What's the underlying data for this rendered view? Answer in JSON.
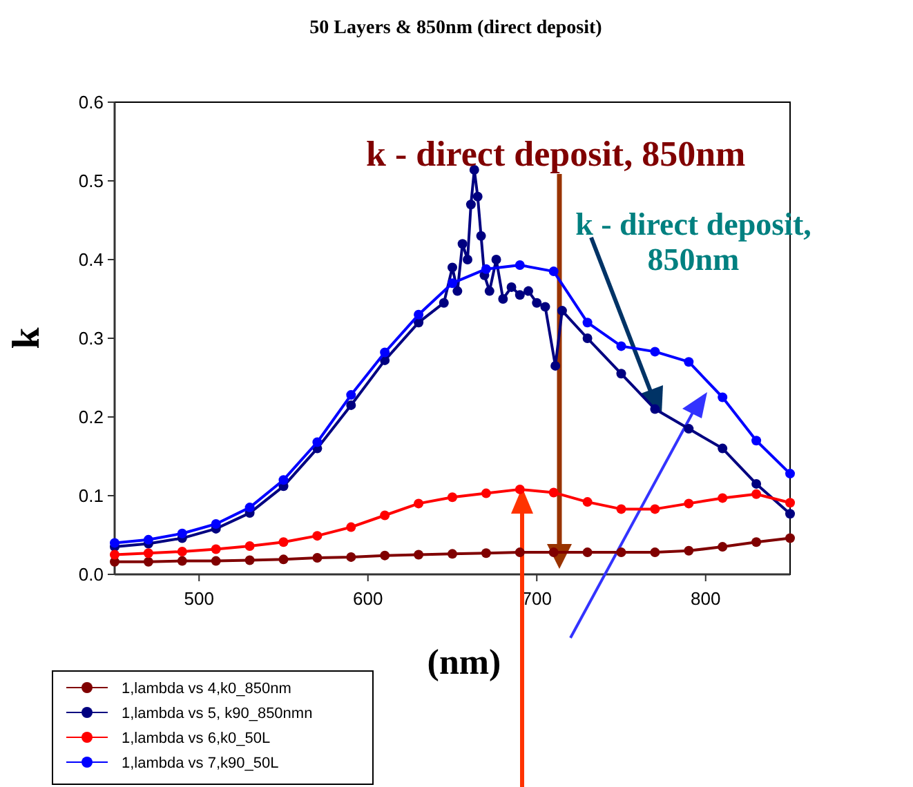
{
  "chart_data": {
    "type": "line",
    "title": "50 Layers & 850nm (direct deposit)",
    "xlabel": "(nm)",
    "ylabel": "k",
    "x": [
      450,
      470,
      490,
      510,
      530,
      550,
      570,
      590,
      610,
      630,
      650,
      670,
      690,
      710,
      730,
      750,
      770,
      790,
      810,
      830,
      850
    ],
    "xlim": [
      450,
      850
    ],
    "xticks": [
      500,
      600,
      700,
      800
    ],
    "ylim": [
      0,
      0.6
    ],
    "yticks": [
      {
        "value": 0,
        "label": "0.0"
      },
      0.1,
      0.2,
      0.3,
      0.4,
      0.5,
      0.6
    ],
    "grid": false,
    "legend": "bottom left",
    "marker": "circle",
    "line_style": "solid",
    "annotations": [
      "k  - direct deposit, 850nm",
      "k  - direct deposit,\n850nm"
    ],
    "series": [
      {
        "name": "1,lambda vs 4,k0_850nm",
        "color": "#800000",
        "values": [
          0.016,
          0.016,
          0.017,
          0.017,
          0.018,
          0.019,
          0.021,
          0.022,
          0.024,
          0.025,
          0.026,
          0.027,
          0.028,
          0.028,
          0.028,
          0.028,
          0.028,
          0.03,
          0.035,
          0.041,
          0.046
        ]
      },
      {
        "name": "1,lambda vs 5, k90_850nmn",
        "color": "#000080",
        "x": [
          450,
          470,
          490,
          510,
          530,
          550,
          570,
          590,
          610,
          630,
          645,
          650,
          653,
          656,
          659,
          661,
          663,
          665,
          667,
          669,
          672,
          676,
          680,
          685,
          690,
          695,
          700,
          705,
          711,
          715,
          730,
          750,
          770,
          790,
          810,
          830,
          850
        ],
        "values": [
          0.035,
          0.039,
          0.046,
          0.058,
          0.078,
          0.112,
          0.16,
          0.215,
          0.272,
          0.32,
          0.345,
          0.39,
          0.36,
          0.42,
          0.4,
          0.47,
          0.514,
          0.48,
          0.43,
          0.38,
          0.36,
          0.4,
          0.35,
          0.365,
          0.355,
          0.36,
          0.345,
          0.34,
          0.265,
          0.335,
          0.3,
          0.255,
          0.21,
          0.185,
          0.16,
          0.115,
          0.077
        ]
      },
      {
        "name": "1,lambda vs 6,k0_50L",
        "color": "#ff0000",
        "values": [
          0.025,
          0.027,
          0.029,
          0.032,
          0.036,
          0.041,
          0.049,
          0.06,
          0.075,
          0.09,
          0.098,
          0.103,
          0.108,
          0.104,
          0.092,
          0.083,
          0.083,
          0.09,
          0.097,
          0.102,
          0.091
        ]
      },
      {
        "name": "1,lambda vs 7,k90_50L",
        "color": "#0000ff",
        "values": [
          0.04,
          0.044,
          0.052,
          0.064,
          0.085,
          0.12,
          0.168,
          0.228,
          0.282,
          0.33,
          0.37,
          0.388,
          0.393,
          0.385,
          0.32,
          0.29,
          0.283,
          0.27,
          0.225,
          0.17,
          0.128
        ]
      }
    ]
  }
}
